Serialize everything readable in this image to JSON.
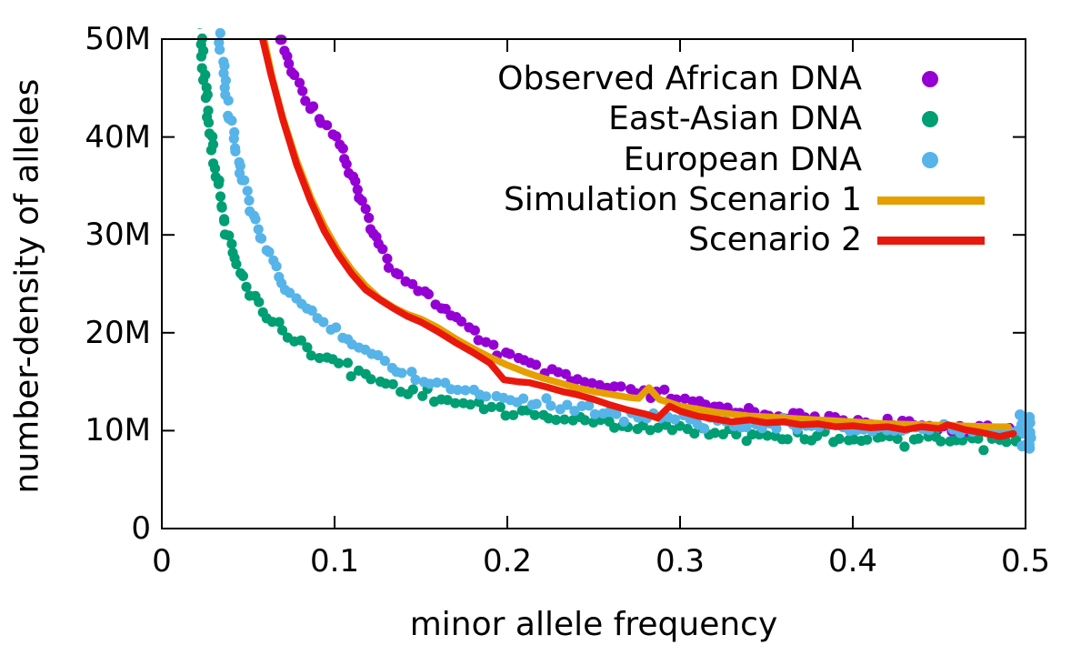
{
  "chart_data": {
    "type": "scatter",
    "title": "",
    "xlabel": "minor allele frequency",
    "ylabel": "number-density of alleles",
    "xlim": [
      0,
      0.5
    ],
    "ylim": [
      0,
      50000000
    ],
    "value_unit": "alleles (M = millions)",
    "grid": false,
    "legend_position": "top-right-inside",
    "xticks": [
      [
        0,
        "0"
      ],
      [
        0.1,
        "0.1"
      ],
      [
        0.2,
        "0.2"
      ],
      [
        0.3,
        "0.3"
      ],
      [
        0.4,
        "0.4"
      ],
      [
        0.5,
        "0.5"
      ]
    ],
    "yticks": [
      [
        0,
        "0"
      ],
      [
        10,
        "10M"
      ],
      [
        20,
        "20M"
      ],
      [
        30,
        "30M"
      ],
      [
        40,
        "40M"
      ],
      [
        50,
        "50M"
      ]
    ],
    "series": [
      {
        "name": "Observed African DNA",
        "style": "points",
        "color": "#9400d3",
        "points_unit": "[minor allele frequency, number-density in millions]",
        "points": [
          [
            0.068,
            51
          ],
          [
            0.072,
            48.5
          ],
          [
            0.076,
            46.5
          ],
          [
            0.08,
            45
          ],
          [
            0.085,
            43.5
          ],
          [
            0.09,
            42.3
          ],
          [
            0.095,
            41.3
          ],
          [
            0.1,
            40.4
          ],
          [
            0.105,
            38.6
          ],
          [
            0.11,
            36.2
          ],
          [
            0.115,
            33.6
          ],
          [
            0.12,
            31.2
          ],
          [
            0.125,
            29.2
          ],
          [
            0.13,
            27.6
          ],
          [
            0.135,
            26.4
          ],
          [
            0.14,
            25.6
          ],
          [
            0.15,
            24.4
          ],
          [
            0.16,
            22.9
          ],
          [
            0.17,
            21.4
          ],
          [
            0.18,
            20
          ],
          [
            0.19,
            18.8
          ],
          [
            0.2,
            17.8
          ],
          [
            0.21,
            16.9
          ],
          [
            0.22,
            16.2
          ],
          [
            0.23,
            15.6
          ],
          [
            0.24,
            15.1
          ],
          [
            0.25,
            14.7
          ],
          [
            0.26,
            14.3
          ],
          [
            0.27,
            14
          ],
          [
            0.28,
            13.8
          ],
          [
            0.285,
            13.6
          ],
          [
            0.29,
            13.9
          ],
          [
            0.295,
            13.4
          ],
          [
            0.3,
            13
          ],
          [
            0.31,
            12.7
          ],
          [
            0.32,
            12.4
          ],
          [
            0.33,
            12.2
          ],
          [
            0.34,
            12
          ],
          [
            0.35,
            11.8
          ],
          [
            0.36,
            11.6
          ],
          [
            0.37,
            11.4
          ],
          [
            0.38,
            11.2
          ],
          [
            0.39,
            11.1
          ],
          [
            0.4,
            11
          ],
          [
            0.42,
            10.7
          ],
          [
            0.44,
            10.5
          ],
          [
            0.46,
            10.3
          ],
          [
            0.48,
            10.1
          ],
          [
            0.495,
            10
          ]
        ]
      },
      {
        "name": "East-Asian DNA",
        "style": "points",
        "color": "#009e73",
        "points_unit": "[minor allele frequency, number-density in millions]",
        "points": [
          [
            0.022,
            51
          ],
          [
            0.024,
            47
          ],
          [
            0.026,
            43.5
          ],
          [
            0.028,
            40.5
          ],
          [
            0.03,
            38
          ],
          [
            0.032,
            35.5
          ],
          [
            0.034,
            33.5
          ],
          [
            0.036,
            31.5
          ],
          [
            0.038,
            30
          ],
          [
            0.04,
            28.7
          ],
          [
            0.043,
            27.2
          ],
          [
            0.046,
            25.9
          ],
          [
            0.05,
            24.5
          ],
          [
            0.054,
            23.4
          ],
          [
            0.058,
            22.4
          ],
          [
            0.063,
            21.4
          ],
          [
            0.068,
            20.6
          ],
          [
            0.074,
            19.7
          ],
          [
            0.08,
            18.9
          ],
          [
            0.086,
            18.2
          ],
          [
            0.093,
            17.6
          ],
          [
            0.1,
            17.1
          ],
          [
            0.11,
            16.3
          ],
          [
            0.12,
            15.5
          ],
          [
            0.13,
            14.8
          ],
          [
            0.14,
            14.2
          ],
          [
            0.15,
            13.7
          ],
          [
            0.16,
            13.3
          ],
          [
            0.17,
            12.9
          ],
          [
            0.18,
            12.6
          ],
          [
            0.19,
            12.3
          ],
          [
            0.2,
            12.1
          ],
          [
            0.21,
            11.8
          ],
          [
            0.22,
            11.5
          ],
          [
            0.23,
            11.3
          ],
          [
            0.24,
            11.1
          ],
          [
            0.25,
            10.9
          ],
          [
            0.26,
            10.7
          ],
          [
            0.27,
            10.5
          ],
          [
            0.28,
            10.4
          ],
          [
            0.29,
            10.2
          ],
          [
            0.3,
            10.1
          ],
          [
            0.32,
            9.9
          ],
          [
            0.34,
            9.7
          ],
          [
            0.36,
            9.5
          ],
          [
            0.38,
            9.3
          ],
          [
            0.4,
            9.2
          ],
          [
            0.42,
            9.1
          ],
          [
            0.44,
            9
          ],
          [
            0.46,
            8.9
          ],
          [
            0.48,
            8.8
          ],
          [
            0.495,
            8.9
          ]
        ]
      },
      {
        "name": "European DNA",
        "style": "points",
        "color": "#56b4e9",
        "points_unit": "[minor allele frequency, number-density in millions]",
        "points": [
          [
            0.033,
            51
          ],
          [
            0.035,
            48
          ],
          [
            0.037,
            45.3
          ],
          [
            0.039,
            42.8
          ],
          [
            0.041,
            40.7
          ],
          [
            0.043,
            38.8
          ],
          [
            0.046,
            36.3
          ],
          [
            0.049,
            34.2
          ],
          [
            0.052,
            32.4
          ],
          [
            0.055,
            30.8
          ],
          [
            0.058,
            29.4
          ],
          [
            0.062,
            27.8
          ],
          [
            0.066,
            26.4
          ],
          [
            0.07,
            25.2
          ],
          [
            0.075,
            24
          ],
          [
            0.08,
            22.9
          ],
          [
            0.086,
            22
          ],
          [
            0.093,
            21.1
          ],
          [
            0.1,
            20.4
          ],
          [
            0.108,
            19.4
          ],
          [
            0.116,
            18.4
          ],
          [
            0.124,
            17.5
          ],
          [
            0.132,
            16.7
          ],
          [
            0.14,
            16
          ],
          [
            0.15,
            15.4
          ],
          [
            0.16,
            14.9
          ],
          [
            0.17,
            14.4
          ],
          [
            0.18,
            14
          ],
          [
            0.19,
            13.7
          ],
          [
            0.2,
            13.4
          ],
          [
            0.21,
            13.1
          ],
          [
            0.22,
            12.8
          ],
          [
            0.23,
            12.5
          ],
          [
            0.24,
            12.3
          ],
          [
            0.25,
            12.1
          ],
          [
            0.26,
            11.9
          ],
          [
            0.27,
            11.7
          ],
          [
            0.28,
            11.5
          ],
          [
            0.29,
            11.4
          ],
          [
            0.3,
            11.2
          ],
          [
            0.32,
            10.9
          ],
          [
            0.34,
            10.7
          ],
          [
            0.36,
            10.5
          ],
          [
            0.38,
            10.3
          ],
          [
            0.4,
            10.2
          ],
          [
            0.42,
            10.1
          ],
          [
            0.44,
            10
          ],
          [
            0.46,
            9.9
          ],
          [
            0.48,
            9.9
          ],
          [
            0.5,
            10
          ]
        ]
      },
      {
        "name": "Simulation Scenario 1",
        "style": "line",
        "color": "#e69f00",
        "points_unit": "[minor allele frequency, number-density in millions]",
        "points": [
          [
            0.058,
            51
          ],
          [
            0.064,
            46
          ],
          [
            0.07,
            42
          ],
          [
            0.078,
            37.6
          ],
          [
            0.086,
            33.9
          ],
          [
            0.094,
            30.9
          ],
          [
            0.102,
            28.4
          ],
          [
            0.11,
            26.4
          ],
          [
            0.118,
            24.8
          ],
          [
            0.126,
            23.5
          ],
          [
            0.134,
            22.6
          ],
          [
            0.142,
            21.9
          ],
          [
            0.15,
            21.4
          ],
          [
            0.16,
            20.5
          ],
          [
            0.17,
            19.4
          ],
          [
            0.18,
            18.4
          ],
          [
            0.19,
            17.5
          ],
          [
            0.2,
            16.7
          ],
          [
            0.21,
            16
          ],
          [
            0.22,
            15.4
          ],
          [
            0.23,
            14.9
          ],
          [
            0.24,
            14.4
          ],
          [
            0.25,
            14
          ],
          [
            0.26,
            13.7
          ],
          [
            0.27,
            13.4
          ],
          [
            0.276,
            13.3
          ],
          [
            0.282,
            14.4
          ],
          [
            0.288,
            13.2
          ],
          [
            0.295,
            12.8
          ],
          [
            0.3,
            12.5
          ],
          [
            0.31,
            12.2
          ],
          [
            0.32,
            11.9
          ],
          [
            0.33,
            11.7
          ],
          [
            0.34,
            11.5
          ],
          [
            0.35,
            11.4
          ],
          [
            0.36,
            11.3
          ],
          [
            0.37,
            11.2
          ],
          [
            0.38,
            11.1
          ],
          [
            0.39,
            11
          ],
          [
            0.4,
            10.9
          ],
          [
            0.42,
            10.7
          ],
          [
            0.44,
            10.6
          ],
          [
            0.46,
            10.5
          ],
          [
            0.48,
            10.4
          ],
          [
            0.49,
            10.4
          ]
        ]
      },
      {
        "name": "Scenario 2",
        "style": "line",
        "color": "#e8190c",
        "points_unit": "[minor allele frequency, number-density in millions]",
        "points": [
          [
            0.057,
            51
          ],
          [
            0.063,
            46.5
          ],
          [
            0.07,
            41.8
          ],
          [
            0.078,
            37.2
          ],
          [
            0.086,
            33.5
          ],
          [
            0.094,
            30.4
          ],
          [
            0.102,
            28
          ],
          [
            0.11,
            26
          ],
          [
            0.118,
            24.4
          ],
          [
            0.126,
            23.4
          ],
          [
            0.134,
            22.5
          ],
          [
            0.142,
            21.7
          ],
          [
            0.15,
            21.1
          ],
          [
            0.16,
            20.1
          ],
          [
            0.17,
            19
          ],
          [
            0.18,
            18
          ],
          [
            0.19,
            16.9
          ],
          [
            0.198,
            15.2
          ],
          [
            0.206,
            15
          ],
          [
            0.213,
            14.9
          ],
          [
            0.222,
            14.5
          ],
          [
            0.232,
            14
          ],
          [
            0.24,
            13.7
          ],
          [
            0.25,
            13.2
          ],
          [
            0.26,
            12.6
          ],
          [
            0.27,
            12.1
          ],
          [
            0.28,
            11.7
          ],
          [
            0.287,
            11.3
          ],
          [
            0.294,
            12.5
          ],
          [
            0.3,
            12
          ],
          [
            0.31,
            11.5
          ],
          [
            0.32,
            11.2
          ],
          [
            0.33,
            10.9
          ],
          [
            0.34,
            11.1
          ],
          [
            0.35,
            10.8
          ],
          [
            0.36,
            10.9
          ],
          [
            0.37,
            10.6
          ],
          [
            0.38,
            10.7
          ],
          [
            0.39,
            10.4
          ],
          [
            0.4,
            10.5
          ],
          [
            0.41,
            10.3
          ],
          [
            0.42,
            10.4
          ],
          [
            0.43,
            10.1
          ],
          [
            0.44,
            10.4
          ],
          [
            0.45,
            10.2
          ],
          [
            0.455,
            10.6
          ],
          [
            0.465,
            10.1
          ],
          [
            0.475,
            9.8
          ],
          [
            0.485,
            9.4
          ],
          [
            0.493,
            9.7
          ]
        ]
      }
    ]
  }
}
